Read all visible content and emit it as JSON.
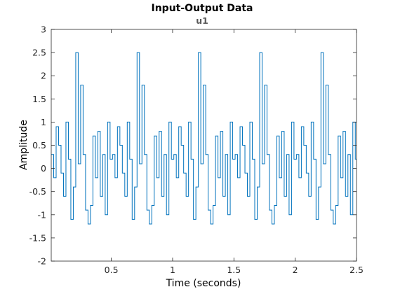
{
  "chart_data": {
    "type": "line",
    "title": "Input-Output Data",
    "subtitle": "u1",
    "xlabel": "Time (seconds)",
    "ylabel": "Amplitude",
    "xlim": [
      0.01,
      2.5
    ],
    "ylim": [
      -2,
      3
    ],
    "xticks": [
      0.5,
      1,
      1.5,
      2,
      2.5
    ],
    "xtick_labels": [
      "0.5",
      "1",
      "1.5",
      "2",
      "2.5"
    ],
    "yticks": [
      -2,
      -1.5,
      -1,
      -0.5,
      0,
      0.5,
      1,
      1.5,
      2,
      2.5,
      3
    ],
    "ytick_labels": [
      "-2",
      "-1.5",
      "-1",
      "-0.5",
      "0",
      "0.5",
      "1",
      "1.5",
      "2",
      "2.5",
      "3"
    ],
    "grid": false,
    "step_style": "stairs",
    "series": [
      {
        "color": "#0072BD",
        "period_pattern": [
          [
            0.0,
            0.3
          ],
          [
            0.02,
            -0.2
          ],
          [
            0.04,
            0.9
          ],
          [
            0.06,
            0.5
          ],
          [
            0.08,
            -0.1
          ],
          [
            0.1,
            -0.6
          ],
          [
            0.12,
            1.0
          ],
          [
            0.14,
            0.2
          ],
          [
            0.16,
            -1.1
          ],
          [
            0.18,
            -0.4
          ],
          [
            0.2,
            2.5
          ],
          [
            0.22,
            0.1
          ],
          [
            0.24,
            1.8
          ],
          [
            0.26,
            0.3
          ],
          [
            0.28,
            -0.9
          ],
          [
            0.3,
            -1.2
          ],
          [
            0.32,
            -0.8
          ],
          [
            0.34,
            0.7
          ],
          [
            0.36,
            -0.2
          ],
          [
            0.38,
            0.8
          ],
          [
            0.4,
            -0.6
          ],
          [
            0.42,
            0.3
          ],
          [
            0.44,
            -1.0
          ],
          [
            0.46,
            1.0
          ],
          [
            0.48,
            0.2
          ]
        ],
        "period_shift": -0.02,
        "repeats": 5,
        "x_start": 0.01,
        "x_end": 2.5
      }
    ]
  }
}
